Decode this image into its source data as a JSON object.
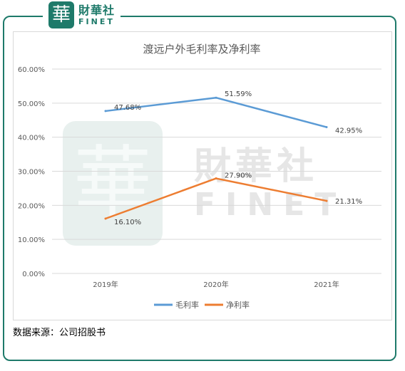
{
  "brand": {
    "logo_glyph": "華",
    "name_cn": "財華社",
    "name_en": "FINET",
    "color": "#1e7a6a"
  },
  "source_note": "数据来源：公司招股书",
  "chart_data": {
    "type": "line",
    "title": "渡远户外毛利率及净利率",
    "categories": [
      "2019年",
      "2020年",
      "2021年"
    ],
    "y_ticks": [
      "0.00%",
      "10.00%",
      "20.00%",
      "30.00%",
      "40.00%",
      "50.00%",
      "60.00%"
    ],
    "ylim": [
      0,
      60
    ],
    "grid": true,
    "legend_position": "bottom",
    "series": [
      {
        "name": "毛利率",
        "values": [
          47.68,
          51.59,
          42.95
        ],
        "labels": [
          "47.68%",
          "51.59%",
          "42.95%"
        ],
        "color": "#5b9bd5"
      },
      {
        "name": "净利率",
        "values": [
          16.1,
          27.9,
          21.31
        ],
        "labels": [
          "16.10%",
          "27.90%",
          "21.31%"
        ],
        "color": "#ed7d31"
      }
    ]
  }
}
